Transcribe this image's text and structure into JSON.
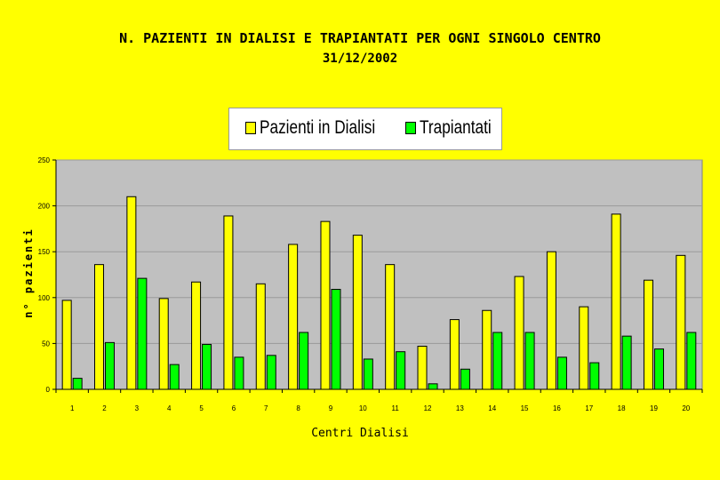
{
  "title": "N. PAZIENTI IN DIALISI E TRAPIANTATI PER OGNI SINGOLO CENTRO",
  "subtitle": "31/12/2002",
  "colors": {
    "background": "#FFFF00",
    "plot_bg": "#C0C0C0",
    "dialisi": "#FFFF00",
    "trapiantati": "#00FF00"
  },
  "chart_data": {
    "type": "bar",
    "title": "N. PAZIENTI IN DIALISI E TRAPIANTATI PER OGNI SINGOLO CENTRO",
    "subtitle": "31/12/2002",
    "xlabel": "Centri Dialisi",
    "ylabel": "n° pazienti",
    "ylim": [
      0,
      250
    ],
    "yticks": [
      "0",
      "50",
      "100",
      "150",
      "200",
      "250"
    ],
    "categories": [
      "1",
      "2",
      "3",
      "4",
      "5",
      "6",
      "7",
      "8",
      "9",
      "10",
      "11",
      "12",
      "13",
      "14",
      "15",
      "16",
      "17",
      "18",
      "19",
      "20"
    ],
    "grid": true,
    "legend_position": "top",
    "series": [
      {
        "name": "Pazienti in Dialisi",
        "values": [
          97,
          136,
          210,
          99,
          117,
          189,
          115,
          158,
          183,
          168,
          136,
          47,
          76,
          86,
          123,
          150,
          90,
          191,
          119,
          146
        ]
      },
      {
        "name": "Trapiantati",
        "values": [
          12,
          51,
          121,
          27,
          49,
          35,
          37,
          62,
          109,
          33,
          41,
          6,
          22,
          62,
          62,
          35,
          29,
          58,
          44,
          62
        ]
      }
    ]
  }
}
